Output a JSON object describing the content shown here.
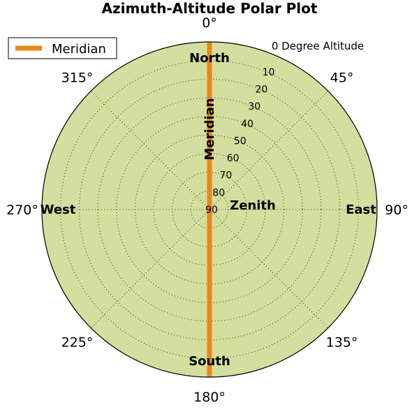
{
  "chart_data": {
    "type": "polar",
    "title": "Azimuth-Altitude Polar Plot",
    "background_color": "#d4de9e",
    "grid": true,
    "grid_style": "dotted",
    "azimuth": {
      "direction": "clockwise",
      "zero_location": "top",
      "ticks": [
        0,
        45,
        90,
        135,
        180,
        225,
        270,
        315
      ],
      "tick_labels": [
        "0°",
        "45°",
        "90°",
        "135°",
        "180°",
        "225°",
        "270°",
        "315°"
      ]
    },
    "altitude": {
      "outer_edge_label": "0 Degree Altitude",
      "center_value": 90,
      "ticks": [
        10,
        20,
        30,
        40,
        50,
        60,
        70,
        80,
        90
      ],
      "tick_labels": [
        "10",
        "20",
        "30",
        "40",
        "50",
        "60",
        "70",
        "80",
        "90"
      ]
    },
    "direction_labels": [
      {
        "text": "North",
        "azimuth": 0
      },
      {
        "text": "East",
        "azimuth": 90
      },
      {
        "text": "South",
        "azimuth": 180
      },
      {
        "text": "West",
        "azimuth": 270
      }
    ],
    "center_label": "Zenith",
    "series": [
      {
        "name": "Meridian",
        "color": "#e8891a",
        "points": [
          {
            "azimuth": 0,
            "altitude": 0
          },
          {
            "azimuth": 0,
            "altitude": 90
          },
          {
            "azimuth": 180,
            "altitude": 0
          }
        ],
        "annotation": "Meridian"
      }
    ],
    "legend": {
      "placement": "top-left",
      "entries": [
        "Meridian"
      ]
    }
  }
}
